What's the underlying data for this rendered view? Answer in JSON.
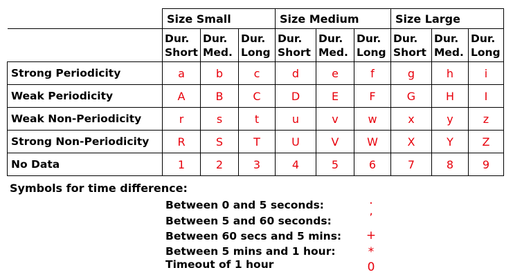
{
  "table": {
    "groups": [
      "Size Small",
      "Size Medium",
      "Size Large"
    ],
    "durations": [
      [
        "Dur.",
        "Short"
      ],
      [
        "Dur.",
        "Med."
      ],
      [
        "Dur.",
        "Long"
      ],
      [
        "Dur.",
        "Short"
      ],
      [
        "Dur.",
        "Med."
      ],
      [
        "Dur.",
        "Long"
      ],
      [
        "Dur.",
        "Short"
      ],
      [
        "Dur.",
        "Med."
      ],
      [
        "Dur.",
        "Long"
      ]
    ],
    "rows": [
      {
        "label": "Strong Periodicity",
        "symbols": [
          "a",
          "b",
          "c",
          "d",
          "e",
          "f",
          "g",
          "h",
          "i"
        ]
      },
      {
        "label": "Weak Periodicity",
        "symbols": [
          "A",
          "B",
          "C",
          "D",
          "E",
          "F",
          "G",
          "H",
          "I"
        ]
      },
      {
        "label": "Weak Non-Periodicity",
        "symbols": [
          "r",
          "s",
          "t",
          "u",
          "v",
          "w",
          "x",
          "y",
          "z"
        ]
      },
      {
        "label": "Strong Non-Periodicity",
        "symbols": [
          "R",
          "S",
          "T",
          "U",
          "V",
          "W",
          "X",
          "Y",
          "Z"
        ]
      },
      {
        "label": "No Data",
        "symbols": [
          "1",
          "2",
          "3",
          "4",
          "5",
          "6",
          "7",
          "8",
          "9"
        ]
      }
    ],
    "symbol_color": "#e8000b"
  },
  "legend": {
    "title": "Symbols for time difference:",
    "items": [
      {
        "label": "Between 0 and 5 seconds:",
        "symbol": "·"
      },
      {
        "label": "Between 5 and 60 seconds:",
        "symbol": "ʼ"
      },
      {
        "label": "Between 60 secs and 5 mins:",
        "symbol": "+"
      },
      {
        "label": "Between 5 mins and 1 hour:",
        "symbol": "*"
      },
      {
        "label": "Timeout of 1 hour",
        "symbol": "0"
      }
    ]
  }
}
